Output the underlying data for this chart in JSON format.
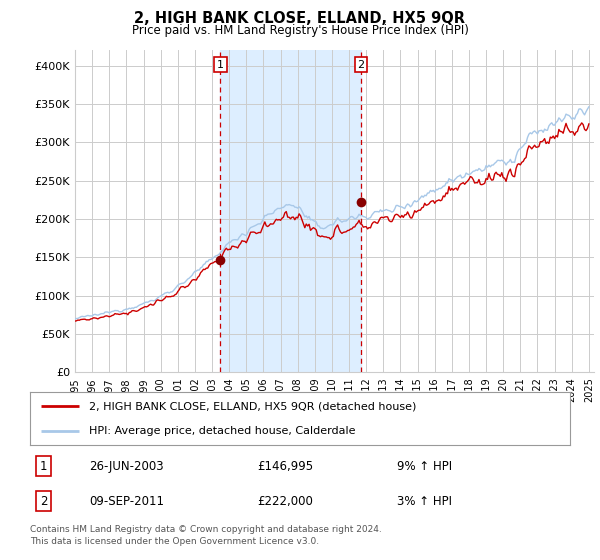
{
  "title": "2, HIGH BANK CLOSE, ELLAND, HX5 9QR",
  "subtitle": "Price paid vs. HM Land Registry's House Price Index (HPI)",
  "legend_line1": "2, HIGH BANK CLOSE, ELLAND, HX5 9QR (detached house)",
  "legend_line2": "HPI: Average price, detached house, Calderdale",
  "transaction1_date": "26-JUN-2003",
  "transaction1_price": "£146,995",
  "transaction1_hpi": "9% ↑ HPI",
  "transaction2_date": "09-SEP-2011",
  "transaction2_price": "£222,000",
  "transaction2_hpi": "3% ↑ HPI",
  "footer": "Contains HM Land Registry data © Crown copyright and database right 2024.\nThis data is licensed under the Open Government Licence v3.0.",
  "hpi_color": "#a8c8e8",
  "price_color": "#cc0000",
  "highlight_color": "#ddeeff",
  "marker_color": "#880000",
  "vline_color": "#cc0000",
  "background_color": "#ffffff",
  "grid_color": "#cccccc",
  "ylim_min": 0,
  "ylim_max": 420000,
  "yticks": [
    0,
    50000,
    100000,
    150000,
    200000,
    250000,
    300000,
    350000,
    400000
  ],
  "ytick_labels": [
    "£0",
    "£50K",
    "£100K",
    "£150K",
    "£200K",
    "£250K",
    "£300K",
    "£350K",
    "£400K"
  ],
  "transaction1_year": 2003.48,
  "transaction2_year": 2011.69,
  "transaction1_value": 146995,
  "transaction2_value": 222000,
  "hpi_base_points_t": [
    1995.0,
    1996.5,
    1998.0,
    1999.5,
    2001.0,
    2002.5,
    2004.0,
    2005.5,
    2007.0,
    2007.8,
    2009.2,
    2010.5,
    2012.0,
    2013.5,
    2015.0,
    2016.5,
    2018.0,
    2019.5,
    2020.5,
    2021.5,
    2022.5,
    2023.5,
    2024.5,
    2025.0
  ],
  "hpi_base_points_v": [
    70000,
    76000,
    83000,
    93000,
    112000,
    138000,
    168000,
    192000,
    215000,
    220000,
    188000,
    198000,
    205000,
    212000,
    225000,
    245000,
    262000,
    272000,
    275000,
    305000,
    320000,
    330000,
    338000,
    342000
  ]
}
